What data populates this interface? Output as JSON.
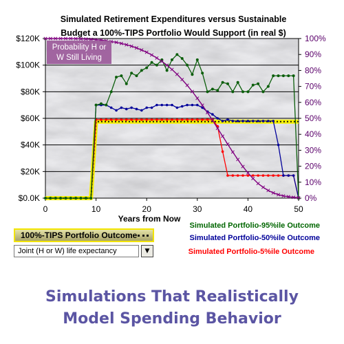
{
  "colors": {
    "p95": "#0b5e0b",
    "p50": "#00009a",
    "p5": "#ff0000",
    "tips": "#f4ef00",
    "probability": "#800080",
    "legend_p95": "#006600",
    "legend_p50": "#000099",
    "legend_p5": "#ff0000",
    "caption": "#5b55a3"
  },
  "chart_data": {
    "type": "line",
    "title_line1": "Simulated Retirement Expenditures versus Sustainable",
    "title_line2": "Budget a 100%-TIPS Portfolio Would Support (in real $)",
    "xlabel": "Years from Now",
    "xlim": [
      0,
      50
    ],
    "x_ticks": [
      "0",
      "10",
      "20",
      "30",
      "40",
      "50"
    ],
    "ylim": [
      0,
      120000
    ],
    "y_ticks": [
      "$0.0K",
      "$20K",
      "$40K",
      "$60K",
      "$80K",
      "$100K",
      "$120K"
    ],
    "y2lim": [
      0,
      100
    ],
    "y2_ticks": [
      "0%",
      "10%",
      "20%",
      "30%",
      "40%",
      "50%",
      "60%",
      "70%",
      "80%",
      "90%",
      "100%"
    ],
    "grid": true,
    "series": [
      {
        "name": "Simulated Portfolio-95%ile Outcome",
        "axis": "left",
        "x": [
          0,
          1,
          2,
          3,
          4,
          5,
          6,
          7,
          8,
          9,
          10,
          11,
          12,
          13,
          14,
          15,
          16,
          17,
          18,
          19,
          20,
          21,
          22,
          23,
          24,
          25,
          26,
          27,
          28,
          29,
          30,
          31,
          32,
          33,
          34,
          35,
          36,
          37,
          38,
          39,
          40,
          41,
          42,
          43,
          44,
          45,
          46,
          47,
          48,
          49,
          50
        ],
        "values": [
          0,
          0,
          0,
          0,
          0,
          0,
          0,
          0,
          0,
          0,
          70000,
          71000,
          70000,
          80000,
          91000,
          92000,
          86000,
          94000,
          92000,
          96000,
          98000,
          102000,
          100000,
          104000,
          96000,
          104000,
          108000,
          105000,
          100000,
          93000,
          104000,
          94000,
          80000,
          82000,
          81000,
          87000,
          86000,
          80000,
          87000,
          80000,
          80000,
          85000,
          86000,
          80000,
          84000,
          92000,
          92000,
          92000,
          92000,
          92000,
          0
        ]
      },
      {
        "name": "Simulated Portfolio-50%ile Outcome",
        "axis": "left",
        "x": [
          0,
          1,
          2,
          3,
          4,
          5,
          6,
          7,
          8,
          9,
          10,
          11,
          12,
          13,
          14,
          15,
          16,
          17,
          18,
          19,
          20,
          21,
          22,
          23,
          24,
          25,
          26,
          27,
          28,
          29,
          30,
          31,
          32,
          33,
          34,
          35,
          36,
          37,
          38,
          39,
          40,
          41,
          42,
          43,
          44,
          45,
          46,
          47,
          48,
          49,
          50
        ],
        "values": [
          0,
          0,
          0,
          0,
          0,
          0,
          0,
          0,
          0,
          0,
          70000,
          70000,
          70000,
          68000,
          66000,
          68000,
          67000,
          68000,
          67000,
          66000,
          68000,
          68000,
          70000,
          70000,
          70000,
          70000,
          68000,
          69000,
          70000,
          70000,
          70000,
          68000,
          65000,
          63000,
          60000,
          58000,
          59000,
          58000,
          58000,
          58000,
          58000,
          58000,
          58000,
          58000,
          58000,
          58000,
          40000,
          17000,
          17000,
          17000,
          0
        ]
      },
      {
        "name": "Simulated Portfolio-5%ile Outcome",
        "axis": "left",
        "x": [
          0,
          1,
          2,
          3,
          4,
          5,
          6,
          7,
          8,
          9,
          10,
          11,
          12,
          13,
          14,
          15,
          16,
          17,
          18,
          19,
          20,
          21,
          22,
          23,
          24,
          25,
          26,
          27,
          28,
          29,
          30,
          31,
          32,
          33,
          34,
          35,
          36,
          37,
          38,
          39,
          40,
          41,
          42,
          43,
          44,
          45,
          46,
          47,
          48,
          49,
          50
        ],
        "values": [
          0,
          0,
          0,
          0,
          0,
          0,
          0,
          0,
          0,
          0,
          59000,
          59000,
          59000,
          59000,
          59000,
          59000,
          59000,
          59000,
          59000,
          59000,
          59000,
          59000,
          59000,
          59000,
          59000,
          59000,
          59000,
          59000,
          59000,
          59000,
          59000,
          59000,
          59000,
          59000,
          54000,
          35000,
          17000,
          17000,
          17000,
          17000,
          17000,
          17000,
          17000,
          17000,
          17000,
          17000,
          17000,
          17000,
          17000,
          17000,
          0
        ]
      },
      {
        "name": "100%-TIPS Portfolio Outcome",
        "axis": "left",
        "x": [
          0,
          9,
          10,
          50
        ],
        "values": [
          0,
          0,
          57500,
          57500
        ]
      },
      {
        "name": "Probability H or W Still Living",
        "axis": "right",
        "x": [
          0,
          1,
          2,
          3,
          4,
          5,
          6,
          7,
          8,
          9,
          10,
          11,
          12,
          13,
          14,
          15,
          16,
          17,
          18,
          19,
          20,
          21,
          22,
          23,
          24,
          25,
          26,
          27,
          28,
          29,
          30,
          31,
          32,
          33,
          34,
          35,
          36,
          37,
          38,
          39,
          40,
          41,
          42,
          43,
          44,
          45,
          46,
          47,
          48,
          49,
          50
        ],
        "values": [
          100,
          100,
          100,
          100,
          100,
          100,
          99.9,
          99.8,
          99.7,
          99.5,
          99.3,
          99,
          98.6,
          98.1,
          97.6,
          96.9,
          96.1,
          95.2,
          94.1,
          92.8,
          91.4,
          89.7,
          87.8,
          85.7,
          83.3,
          80.6,
          77.6,
          74.3,
          70.7,
          66.8,
          62.6,
          58.2,
          53.6,
          48.8,
          43.8,
          38.8,
          33.8,
          28.9,
          24.2,
          19.8,
          15.8,
          12.3,
          9.2,
          6.8,
          4.8,
          3.3,
          2.2,
          1.4,
          0.9,
          0.5,
          0.3
        ]
      }
    ],
    "overlay_label_line1": "Probability H or",
    "overlay_label_line2": "W Still Living",
    "legend_p95": "Simulated Portfolio-95%ile Outcome",
    "legend_p50": "Simulated Portfolio-50%ile Outcome",
    "legend_p5": "Simulated Portfolio-5%ile Outcome"
  },
  "tips_legend_label": "100%-TIPS Portfolio Outcome",
  "dropdown": {
    "selected": "Joint (H or W) life expectancy",
    "arrow_icon": "chevron-down-icon"
  },
  "caption": {
    "line1": "Simulations That Realistically",
    "line2": "Model Spending Behavior"
  }
}
